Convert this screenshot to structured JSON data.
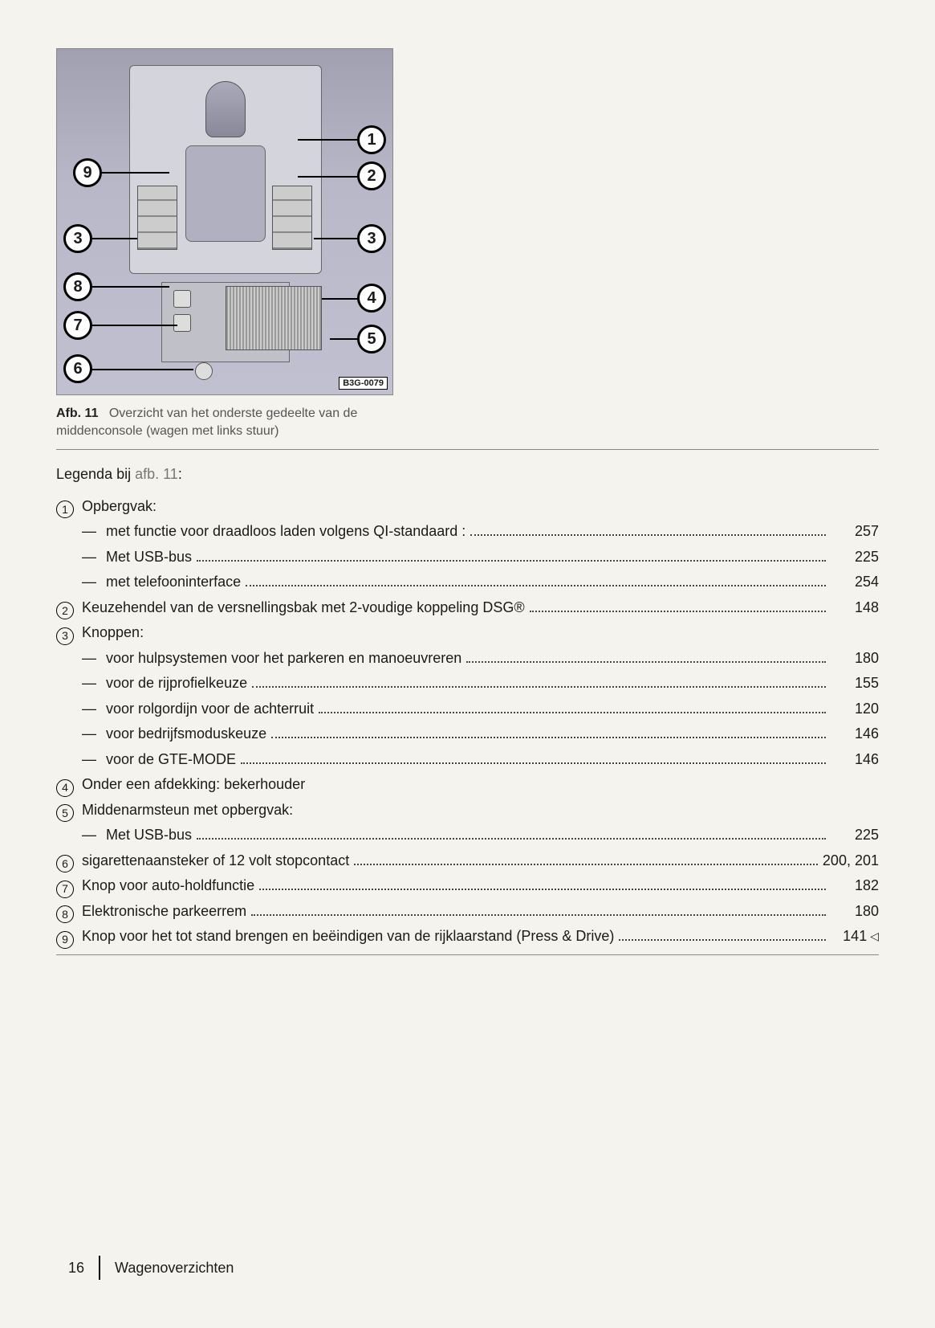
{
  "figure": {
    "code": "B3G-0079",
    "caption_label": "Afb. 11",
    "caption_text_line1": "Overzicht van het onderste gedeelte van de",
    "caption_text_line2": "middenconsole (wagen met links stuur)",
    "callouts": {
      "c1": "1",
      "c2": "2",
      "c3l": "3",
      "c3r": "3",
      "c4": "4",
      "c5": "5",
      "c6": "6",
      "c7": "7",
      "c8": "8",
      "c9": "9"
    }
  },
  "legend": {
    "title_prefix": "Legenda bij ",
    "title_ref": "afb. 11",
    "title_suffix": ":",
    "items": [
      {
        "num": "1",
        "label": "Opbergvak:",
        "page": "",
        "sub": [
          {
            "label": "met functie voor draadloos laden volgens QI-standaard :",
            "page": "257"
          },
          {
            "label": "Met USB-bus",
            "page": "225"
          },
          {
            "label": "met telefooninterface",
            "page": "254"
          }
        ]
      },
      {
        "num": "2",
        "label": "Keuzehendel van de versnellingsbak met 2-voudige koppeling DSG®",
        "page": "148"
      },
      {
        "num": "3",
        "label": "Knoppen:",
        "page": "",
        "sub": [
          {
            "label": "voor hulpsystemen voor het parkeren en manoeuvreren",
            "page": "180"
          },
          {
            "label": "voor de rijprofielkeuze",
            "page": "155"
          },
          {
            "label": "voor rolgordijn voor de achterruit",
            "page": "120"
          },
          {
            "label": "voor bedrijfsmoduskeuze",
            "page": "146"
          },
          {
            "label": "voor de GTE-MODE",
            "page": "146"
          }
        ]
      },
      {
        "num": "4",
        "label": "Onder een afdekking: bekerhouder",
        "page": ""
      },
      {
        "num": "5",
        "label": "Middenarmsteun met opbergvak:",
        "page": "",
        "sub": [
          {
            "label": "Met USB-bus",
            "page": "225"
          }
        ]
      },
      {
        "num": "6",
        "label": "sigarettenaansteker of 12 volt stopcontact",
        "page": "200, 201"
      },
      {
        "num": "7",
        "label": "Knop voor auto-holdfunctie",
        "page": "182"
      },
      {
        "num": "8",
        "label": "Elektronische parkeerrem",
        "page": "180"
      },
      {
        "num": "9",
        "label": "Knop voor het tot stand brengen en beëindigen van de rijklaarstand (Press & Drive)",
        "page": "141",
        "marker": "◁"
      }
    ]
  },
  "footer": {
    "page_number": "16",
    "section": "Wagenoverzichten"
  },
  "styling": {
    "page_bg": "#f5f3ed",
    "text_color": "#1a1a1a",
    "caption_color": "#555555",
    "divider_color": "#888888",
    "body_fontsize_pt": 13,
    "callout_border_color": "#000000",
    "callout_bg": "#ffffff"
  }
}
